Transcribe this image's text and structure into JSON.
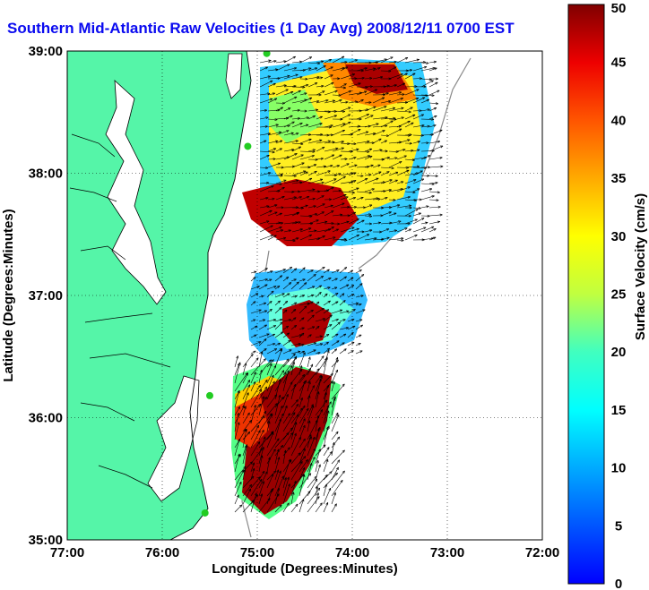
{
  "title": "Southern Mid-Atlantic Raw Velocities (1 Day Avg) 2008/12/11 0700 EST",
  "xlabel": "Longitude (Degrees:Minutes)",
  "ylabel": "Latitude (Degrees:Minutes)",
  "x_ticks": [
    "77:00",
    "76:00",
    "75:00",
    "74:00",
    "73:00",
    "72:00"
  ],
  "y_ticks": [
    "39:00",
    "38:00",
    "37:00",
    "36:00",
    "35:00"
  ],
  "colorbar": {
    "label": "Surface Velocity (cm/s)",
    "ticks": [
      "0",
      "5",
      "10",
      "15",
      "20",
      "25",
      "30",
      "35",
      "40",
      "45",
      "50"
    ],
    "min": 0,
    "max": 50
  },
  "colors": {
    "title": "#0a0af0",
    "land": "#55f5a8",
    "coast_line": "#000000",
    "isobath": "#8a8a8a",
    "station": "#22cc22"
  },
  "map_extent": {
    "lon": [
      -77,
      -72
    ],
    "lat": [
      35,
      39
    ]
  },
  "stations": [
    {
      "lon": -74.9,
      "lat": 38.98
    },
    {
      "lon": -75.1,
      "lat": 38.22
    },
    {
      "lon": -75.5,
      "lat": 36.18
    },
    {
      "lon": -75.55,
      "lat": 35.22
    }
  ]
}
